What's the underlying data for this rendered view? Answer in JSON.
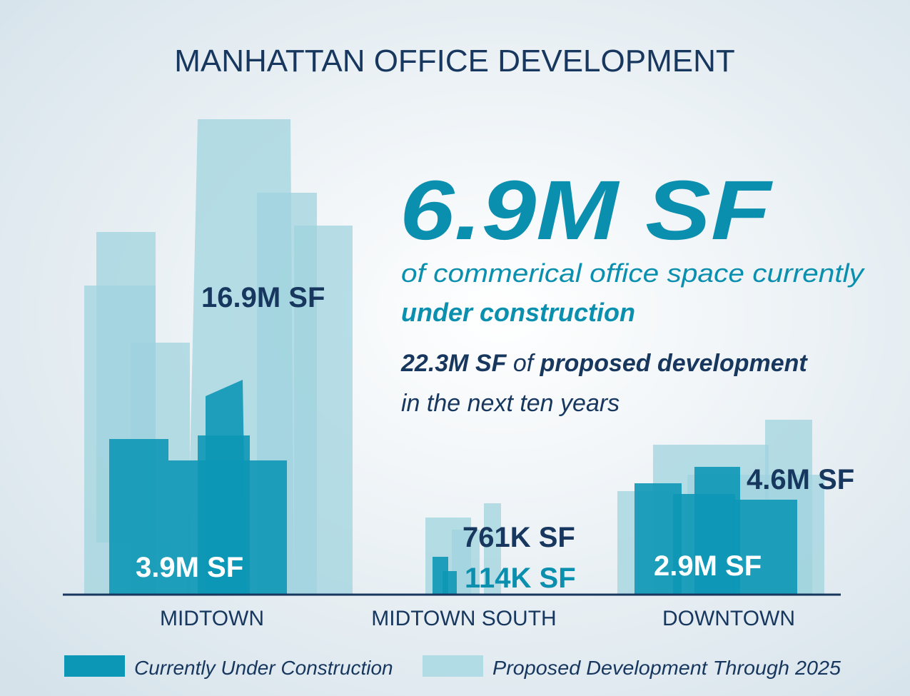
{
  "header": {
    "title": "MANHATTAN OFFICE DEVELOPMENT"
  },
  "headline": {
    "figure": "6.9M SF",
    "line1": "of commerical office space currently",
    "line2": "under construction",
    "proposed_figure": "22.3M SF",
    "proposed_of": "of",
    "proposed_text": "proposed development",
    "proposed_line2": "in the next ten years"
  },
  "districts": [
    {
      "name": "MIDTOWN",
      "proposed": "16.9M SF",
      "construction": "3.9M SF"
    },
    {
      "name": "MIDTOWN SOUTH",
      "proposed": "761K SF",
      "construction": "114K SF"
    },
    {
      "name": "DOWNTOWN",
      "proposed": "4.6M SF",
      "construction": "2.9M SF"
    }
  ],
  "legend": {
    "construction": "Currently Under Construction",
    "proposed": "Proposed Development Through 2025"
  }
}
